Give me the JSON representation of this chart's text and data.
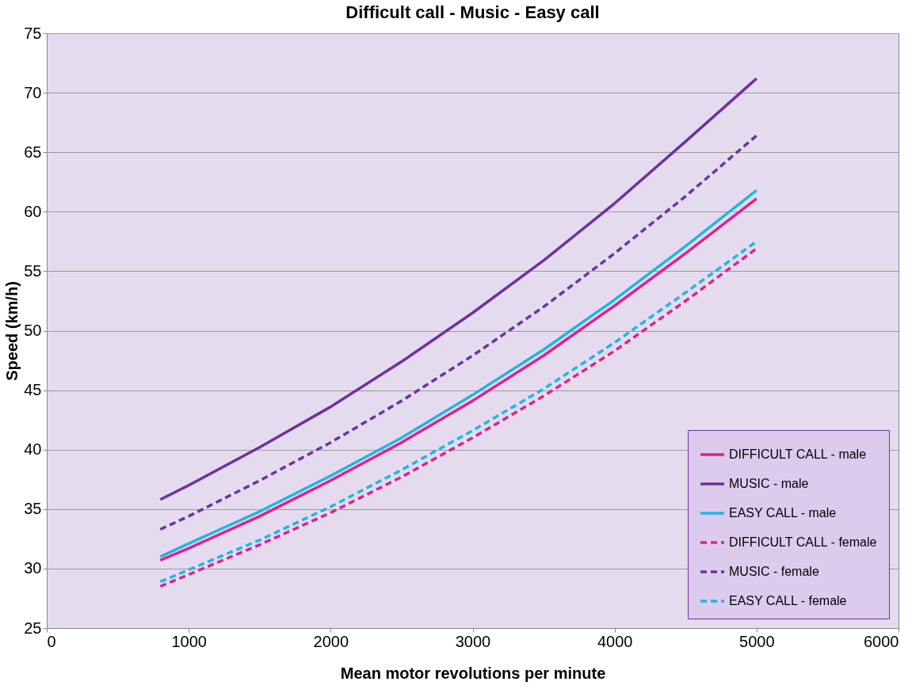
{
  "chart_data": {
    "type": "line",
    "title": "Difficult call - Music - Easy call",
    "xlabel": "Mean motor revolutions per minute",
    "ylabel": "Speed (km/h)",
    "x": [
      800,
      1000,
      1500,
      2000,
      2500,
      3000,
      3500,
      4000,
      4500,
      5000
    ],
    "series": [
      {
        "name": "DIFFICULT CALL - male",
        "color": "#e0218a",
        "line_style": "solid",
        "values": [
          30.7,
          31.7,
          34.4,
          37.4,
          40.6,
          44.1,
          47.9,
          52.1,
          56.5,
          61.1
        ]
      },
      {
        "name": "MUSIC - male",
        "color": "#7030a0",
        "line_style": "solid",
        "values": [
          35.8,
          37.0,
          40.2,
          43.6,
          47.4,
          51.5,
          55.9,
          60.7,
          65.9,
          71.2
        ]
      },
      {
        "name": "EASY CALL - male",
        "color": "#1fb4e8",
        "line_style": "solid",
        "values": [
          31.0,
          32.1,
          34.8,
          37.8,
          41.0,
          44.6,
          48.4,
          52.6,
          57.1,
          61.8
        ]
      },
      {
        "name": "DIFFICULT CALL - female",
        "color": "#e0218a",
        "line_style": "dashed",
        "values": [
          28.5,
          29.5,
          32.0,
          34.7,
          37.7,
          41.0,
          44.5,
          48.3,
          52.5,
          56.9
        ]
      },
      {
        "name": "MUSIC - female",
        "color": "#7030a0",
        "line_style": "dashed",
        "values": [
          33.3,
          34.4,
          37.4,
          40.6,
          44.1,
          47.9,
          52.0,
          56.5,
          61.3,
          66.4
        ]
      },
      {
        "name": "EASY CALL - female",
        "color": "#1fb4e8",
        "line_style": "dashed",
        "values": [
          28.9,
          29.9,
          32.4,
          35.2,
          38.3,
          41.6,
          45.1,
          49.0,
          53.2,
          57.5
        ]
      }
    ],
    "xlim": [
      0,
      6000
    ],
    "xticks": [
      0,
      1000,
      2000,
      3000,
      4000,
      5000,
      6000
    ],
    "ylim": [
      25,
      75
    ],
    "yticks": [
      25,
      30,
      35,
      40,
      45,
      50,
      55,
      60,
      65,
      70,
      75
    ],
    "grid": "y",
    "legend": "bottom right",
    "marker": "none"
  }
}
